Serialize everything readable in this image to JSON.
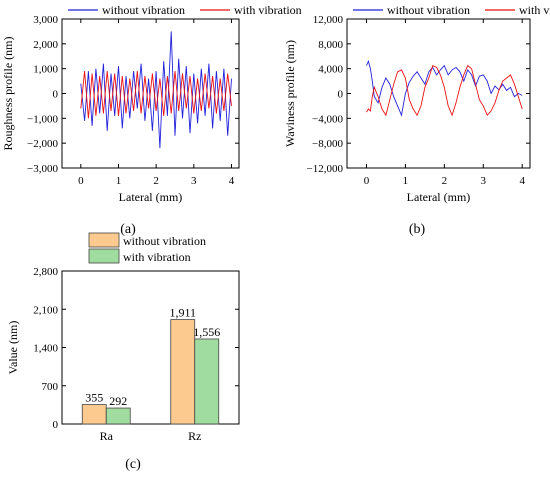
{
  "figure": {
    "panels": {
      "a": {
        "caption": "(a)"
      },
      "b": {
        "caption": "(b)"
      },
      "c": {
        "caption": "(c)"
      }
    }
  },
  "chart_data": [
    {
      "type": "line",
      "title": "",
      "xlabel": "Lateral (mm)",
      "ylabel": "Roughness profile (nm)",
      "xlim": [
        -0.5,
        4.2
      ],
      "ylim": [
        -3000,
        3000
      ],
      "xticks": [
        0,
        1,
        2,
        3,
        4
      ],
      "xtick_labels": [
        "0",
        "1",
        "2",
        "3",
        "4"
      ],
      "yticks": [
        -3000,
        -2000,
        -1000,
        0,
        1000,
        2000,
        3000
      ],
      "ytick_labels": [
        "−3,000",
        "−2,000",
        "−1,000",
        "0",
        "1,000",
        "2,000",
        "3,000"
      ],
      "legend": {
        "placement": "top"
      },
      "grid": false,
      "series": [
        {
          "name": "without vibration",
          "color": "#2222dd",
          "x": [
            0,
            0.1,
            0.2,
            0.3,
            0.4,
            0.5,
            0.6,
            0.7,
            0.8,
            0.9,
            1.0,
            1.1,
            1.2,
            1.3,
            1.4,
            1.5,
            1.6,
            1.7,
            1.8,
            1.9,
            2.0,
            2.1,
            2.2,
            2.3,
            2.4,
            2.5,
            2.6,
            2.7,
            2.8,
            2.9,
            3.0,
            3.1,
            3.2,
            3.3,
            3.4,
            3.5,
            3.6,
            3.7,
            3.8,
            3.9,
            4.0
          ],
          "y": [
            400,
            -1100,
            900,
            -1300,
            1000,
            -800,
            1200,
            -1500,
            800,
            -900,
            1100,
            -1400,
            700,
            -1000,
            900,
            -600,
            1200,
            -1100,
            600,
            -1500,
            900,
            -2200,
            1300,
            -900,
            2500,
            -1700,
            1400,
            -1000,
            1100,
            -1600,
            800,
            -1200,
            1000,
            -900,
            1200,
            -1400,
            900,
            -1100,
            1000,
            -1700,
            600
          ]
        },
        {
          "name": "with vibration",
          "color": "#ee1111",
          "x": [
            0,
            0.1,
            0.2,
            0.3,
            0.4,
            0.5,
            0.6,
            0.7,
            0.8,
            0.9,
            1.0,
            1.1,
            1.2,
            1.3,
            1.4,
            1.5,
            1.6,
            1.7,
            1.8,
            1.9,
            2.0,
            2.1,
            2.2,
            2.3,
            2.4,
            2.5,
            2.6,
            2.7,
            2.8,
            2.9,
            3.0,
            3.1,
            3.2,
            3.3,
            3.4,
            3.5,
            3.6,
            3.7,
            3.8,
            3.9,
            4.0
          ],
          "y": [
            -600,
            900,
            -1000,
            800,
            -900,
            700,
            -800,
            900,
            -700,
            800,
            -900,
            700,
            -800,
            600,
            -700,
            900,
            -800,
            700,
            -600,
            800,
            -700,
            600,
            -900,
            700,
            -800,
            900,
            -700,
            800,
            -600,
            700,
            -800,
            600,
            -700,
            800,
            -600,
            700,
            -800,
            600,
            -700,
            800,
            -500
          ]
        }
      ]
    },
    {
      "type": "line",
      "title": "",
      "xlabel": "Lateral (mm)",
      "ylabel": "Waviness profile (nm)",
      "xlim": [
        -0.5,
        4.2
      ],
      "ylim": [
        -12000,
        12000
      ],
      "xticks": [
        0,
        1,
        2,
        3,
        4
      ],
      "xtick_labels": [
        "0",
        "1",
        "2",
        "3",
        "4"
      ],
      "yticks": [
        -12000,
        -8000,
        -4000,
        0,
        4000,
        8000,
        12000
      ],
      "ytick_labels": [
        "−12,000",
        "−8,000",
        "−4,000",
        "0",
        "4,000",
        "8,000",
        "12,000"
      ],
      "legend": {
        "placement": "top"
      },
      "grid": false,
      "series": [
        {
          "name": "without vibration",
          "color": "#2222dd",
          "x": [
            0,
            0.05,
            0.1,
            0.15,
            0.2,
            0.3,
            0.4,
            0.5,
            0.6,
            0.7,
            0.8,
            0.9,
            1.0,
            1.1,
            1.2,
            1.3,
            1.4,
            1.5,
            1.6,
            1.7,
            1.8,
            1.9,
            2.0,
            2.1,
            2.2,
            2.3,
            2.4,
            2.5,
            2.6,
            2.7,
            2.8,
            2.9,
            3.0,
            3.1,
            3.2,
            3.3,
            3.4,
            3.5,
            3.6,
            3.7,
            3.8,
            3.9,
            4.0
          ],
          "y": [
            4500,
            5200,
            4000,
            2000,
            -500,
            -1500,
            1000,
            2500,
            1500,
            -500,
            -2000,
            -3500,
            0,
            1800,
            2800,
            3500,
            2500,
            1500,
            3500,
            4200,
            3000,
            3800,
            4500,
            3000,
            3800,
            4200,
            3500,
            2000,
            3800,
            3000,
            1200,
            2800,
            3000,
            2000,
            0,
            1200,
            600,
            1500,
            500,
            1000,
            -500,
            0,
            -300
          ]
        },
        {
          "name": "with vibration",
          "color": "#ee1111",
          "x": [
            0,
            0.05,
            0.1,
            0.15,
            0.2,
            0.3,
            0.4,
            0.5,
            0.6,
            0.7,
            0.8,
            0.9,
            1.0,
            1.1,
            1.2,
            1.3,
            1.4,
            1.5,
            1.6,
            1.7,
            1.8,
            1.9,
            2.0,
            2.1,
            2.2,
            2.3,
            2.4,
            2.5,
            2.6,
            2.7,
            2.8,
            2.9,
            3.0,
            3.1,
            3.2,
            3.3,
            3.4,
            3.5,
            3.6,
            3.7,
            3.8,
            3.9,
            4.0
          ],
          "y": [
            -3000,
            -2500,
            -2800,
            -500,
            1000,
            -500,
            -2500,
            -3500,
            -1000,
            1500,
            3500,
            3800,
            2500,
            -1000,
            -2500,
            -3500,
            -2000,
            1000,
            2500,
            4500,
            4200,
            3000,
            1000,
            -2000,
            -3500,
            -1500,
            1000,
            3000,
            4500,
            4000,
            1500,
            -1000,
            -2000,
            -3500,
            -2800,
            -1500,
            500,
            2000,
            2500,
            3000,
            1500,
            -500,
            -2500
          ]
        }
      ]
    },
    {
      "type": "bar",
      "title": "",
      "xlabel": "",
      "ylabel": "Value (nm)",
      "categories": [
        "Ra",
        "Rz"
      ],
      "ylim": [
        0,
        2800
      ],
      "yticks": [
        0,
        700,
        1400,
        2100,
        2800
      ],
      "ytick_labels": [
        "0",
        "700",
        "1,400",
        "2,100",
        "2,800"
      ],
      "legend": {
        "placement": "top-left"
      },
      "grid": false,
      "series": [
        {
          "name": "without vibration",
          "color": "#fcc98e",
          "values": [
            355,
            1911
          ],
          "labels": [
            "355",
            "1,911"
          ]
        },
        {
          "name": "with vibration",
          "color": "#a0dca0",
          "values": [
            292,
            1556
          ],
          "labels": [
            "292",
            "1,556"
          ]
        }
      ]
    }
  ]
}
